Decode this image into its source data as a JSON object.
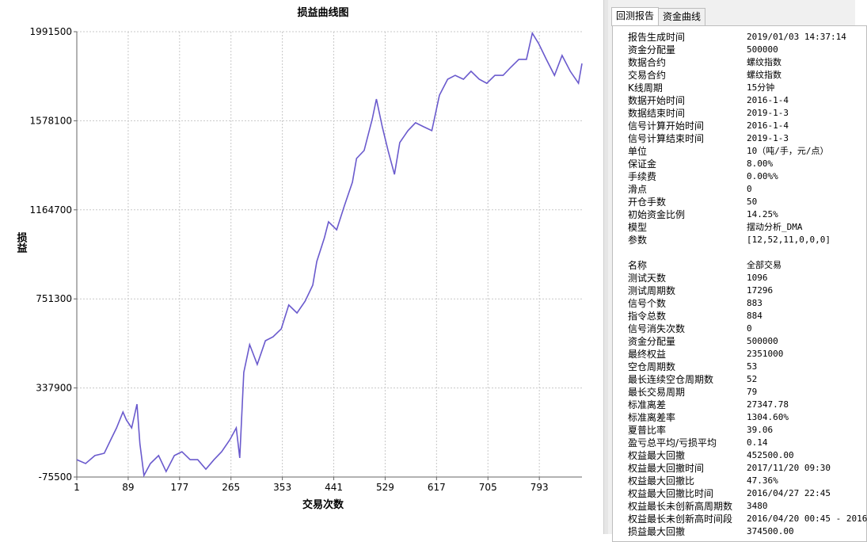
{
  "chart_data": {
    "type": "line",
    "title": "损益曲线图",
    "x_label": "交易次数",
    "y_label": "损益",
    "color": "#6a5acd",
    "grid": true,
    "x": [
      1,
      16,
      32,
      48,
      59,
      69,
      80,
      86,
      95,
      104,
      109,
      116,
      127,
      141,
      154,
      168,
      181,
      195,
      208,
      222,
      236,
      249,
      263,
      274,
      280,
      287,
      297,
      310,
      324,
      337,
      351,
      364,
      378,
      392,
      405,
      412,
      425,
      432,
      446,
      459,
      473,
      480,
      493,
      507,
      514,
      524,
      534,
      545,
      554,
      568,
      581,
      595,
      609,
      622,
      636,
      649,
      663,
      676,
      690,
      703,
      717,
      731,
      744,
      758,
      771,
      781,
      792,
      805,
      819,
      832,
      846,
      860,
      866
    ],
    "values": [
      5000,
      -13000,
      24000,
      35000,
      97000,
      152500,
      226000,
      189000,
      152500,
      263000,
      79000,
      -68000,
      -13000,
      24000,
      -50000,
      24000,
      42000,
      5000,
      5000,
      -39000,
      5000,
      42000,
      97000,
      152500,
      13000,
      410000,
      539000,
      447000,
      557000,
      575000,
      612000,
      723000,
      686000,
      741000,
      815000,
      925000,
      1035000,
      1109000,
      1072000,
      1182000,
      1293000,
      1403000,
      1440000,
      1587000,
      1679000,
      1550000,
      1440000,
      1329000,
      1477000,
      1532000,
      1569000,
      1550000,
      1532000,
      1697000,
      1771000,
      1789000,
      1771000,
      1808000,
      1771000,
      1752000,
      1789000,
      1789000,
      1826000,
      1863000,
      1863000,
      1985000,
      1936000,
      1863000,
      1789000,
      1881000,
      1808000,
      1752000,
      1844000
    ],
    "xlim": [
      1,
      866
    ],
    "xticks": [
      1,
      89,
      177,
      265,
      353,
      441,
      529,
      617,
      705,
      793
    ],
    "ylim": [
      -75500,
      1991500
    ],
    "yticks": [
      -75500,
      337900,
      751300,
      1164700,
      1578100,
      1991500
    ]
  },
  "tabs": [
    "回测报告",
    "资金曲线"
  ],
  "report": {
    "sections": [
      {
        "rows": [
          [
            "报告生成时间",
            "2019/01/03 14:37:14"
          ],
          [
            "资金分配量",
            "500000"
          ],
          [
            "数据合约",
            "螺纹指数"
          ],
          [
            "交易合约",
            "螺纹指数"
          ],
          [
            "K线周期",
            "15分钟"
          ],
          [
            "数据开始时间",
            "2016-1-4"
          ],
          [
            "数据结束时间",
            "2019-1-3"
          ],
          [
            "信号计算开始时间",
            "2016-1-4"
          ],
          [
            "信号计算结束时间",
            "2019-1-3"
          ],
          [
            "单位",
            "10（吨/手，元/点）"
          ],
          [
            "保证金",
            "8.00%"
          ],
          [
            "手续费",
            "0.00%%"
          ],
          [
            "滑点",
            "0"
          ],
          [
            "开仓手数",
            "50"
          ],
          [
            "初始资金比例",
            "14.25%"
          ],
          [
            "模型",
            "摆动分析_DMA"
          ],
          [
            "参数",
            "[12,52,11,0,0,0]"
          ]
        ]
      },
      {
        "rows": [
          [
            "名称",
            "全部交易"
          ],
          [
            "测试天数",
            "1096"
          ],
          [
            "测试周期数",
            "17296"
          ],
          [
            "信号个数",
            "883"
          ],
          [
            "指令总数",
            "884"
          ],
          [
            "信号消失次数",
            "0"
          ],
          [
            "资金分配量",
            "500000"
          ],
          [
            "最终权益",
            "2351000"
          ],
          [
            "空仓周期数",
            "53"
          ],
          [
            "最长连续空仓周期数",
            "52"
          ],
          [
            "最长交易周期",
            "79"
          ],
          [
            "标准离差",
            "27347.78"
          ],
          [
            "标准离差率",
            "1304.60%"
          ],
          [
            "夏普比率",
            "39.06"
          ],
          [
            "盈亏总平均/亏损平均",
            "0.14"
          ],
          [
            "权益最大回撤",
            "452500.00"
          ],
          [
            "权益最大回撤时间",
            "2017/11/20 09:30"
          ],
          [
            "权益最大回撤比",
            "47.36%"
          ],
          [
            "权益最大回撤比时间",
            "2016/04/27 22:45"
          ],
          [
            "权益最长未创新高周期数",
            "3480"
          ],
          [
            "权益最长未创新高时间段",
            "2016/04/20 00:45 - 2016"
          ],
          [
            "损益最大回撤",
            "374500.00"
          ]
        ]
      }
    ]
  }
}
